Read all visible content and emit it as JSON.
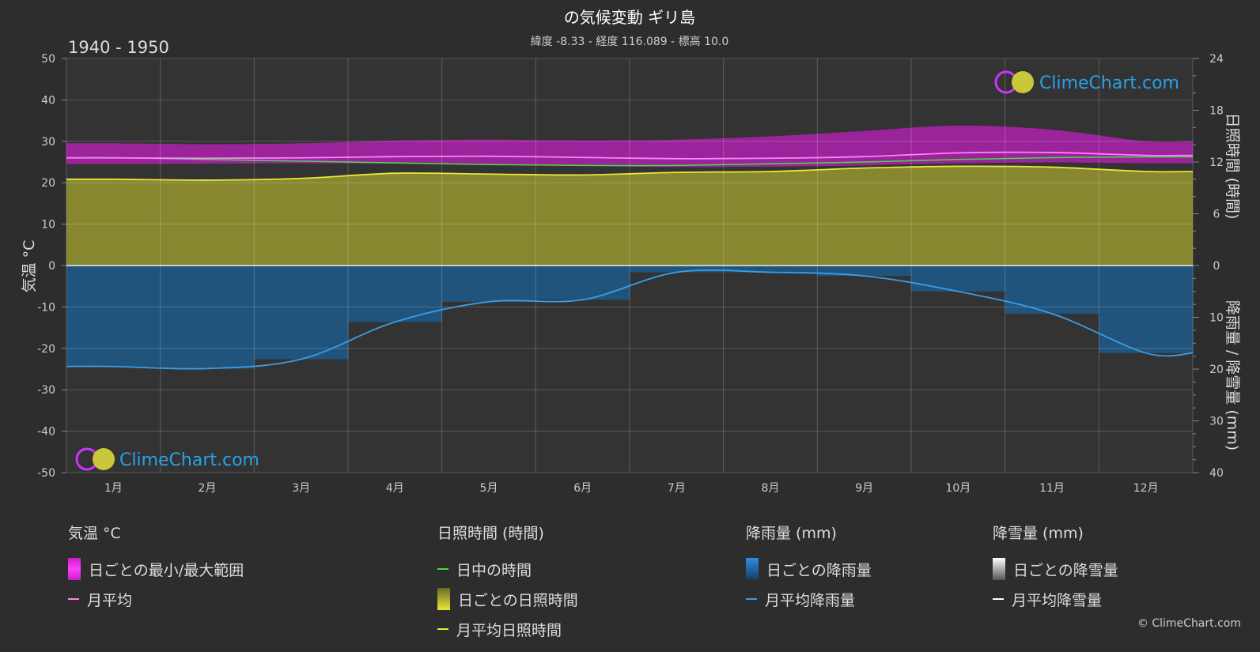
{
  "title": "の気候変動 ギリ島",
  "subtitle": "緯度 -8.33 - 経度 116.089 - 標高 10.0",
  "period": "1940 - 1950",
  "logo_text": "ClimeChart.com",
  "copyright": "© ClimeChart.com",
  "colors": {
    "background": "#2d2d2d",
    "temp_range": "#c81ec8",
    "temp_mean": "#ff80ff",
    "daylight": "#44dd44",
    "sunshine_fill": "#8c8c30",
    "sunshine_mean": "#e8e83a",
    "rain_fill": "#1f5a8a",
    "rain_mean": "#3a9de8",
    "snow_mean": "#ffffff",
    "logo_text": "#2aa0e8"
  },
  "chart_data": {
    "type": "area",
    "months": [
      "1月",
      "2月",
      "3月",
      "4月",
      "5月",
      "6月",
      "7月",
      "8月",
      "9月",
      "10月",
      "11月",
      "12月"
    ],
    "left_axis": {
      "label": "気温 °C",
      "range": [
        -50,
        50
      ],
      "ticks": [
        "50",
        "40",
        "30",
        "20",
        "10",
        "0",
        "-10",
        "-20",
        "-30",
        "-40",
        "-50"
      ]
    },
    "right_axis_top": {
      "label": "日照時間 (時間)",
      "range": [
        0,
        24
      ],
      "ticks": [
        "24",
        "18",
        "12",
        "6",
        "0"
      ]
    },
    "right_axis_bottom": {
      "label": "降雨量 / 降雪量 (mm)",
      "range": [
        0,
        40
      ],
      "ticks": [
        "10",
        "20",
        "30",
        "40"
      ]
    },
    "series": [
      {
        "name": "日ごとの最小/最大範囲",
        "kind": "band",
        "unit": "°C",
        "min": [
          24.5,
          24.6,
          24.7,
          24.6,
          24.4,
          24.1,
          23.8,
          23.9,
          24.2,
          24.7,
          24.9,
          24.7
        ],
        "max": [
          29.5,
          29.3,
          29.5,
          30.2,
          30.4,
          30.2,
          30.4,
          31.2,
          32.5,
          33.8,
          32.8,
          30.0
        ]
      },
      {
        "name": "月平均",
        "kind": "line",
        "unit": "°C",
        "values": [
          26.0,
          25.9,
          26.0,
          26.3,
          26.4,
          26.1,
          25.8,
          25.9,
          26.3,
          27.2,
          27.3,
          26.6
        ]
      },
      {
        "name": "日中の時間",
        "kind": "line",
        "unit": "h",
        "values": [
          12.5,
          12.3,
          12.1,
          11.9,
          11.7,
          11.6,
          11.6,
          11.8,
          12.0,
          12.3,
          12.5,
          12.6
        ]
      },
      {
        "name": "月平均日照時間",
        "kind": "line",
        "unit": "h",
        "values": [
          10.0,
          9.9,
          10.1,
          10.7,
          10.6,
          10.5,
          10.8,
          10.9,
          11.3,
          11.5,
          11.4,
          10.9
        ]
      },
      {
        "name": "月平均降雨量",
        "kind": "line",
        "unit": "mm",
        "values": [
          19.5,
          19.9,
          18.1,
          10.9,
          7.0,
          6.6,
          1.3,
          1.3,
          2.0,
          5.0,
          9.3,
          16.9
        ]
      },
      {
        "name": "月平均降雪量",
        "kind": "line",
        "unit": "mm",
        "values": [
          0,
          0,
          0,
          0,
          0,
          0,
          0,
          0,
          0,
          0,
          0,
          0
        ]
      }
    ]
  },
  "legend": {
    "temp": {
      "title": "気温 °C",
      "items": [
        "日ごとの最小/最大範囲",
        "月平均"
      ]
    },
    "sun": {
      "title": "日照時間 (時間)",
      "items": [
        "日中の時間",
        "日ごとの日照時間",
        "月平均日照時間"
      ]
    },
    "rain": {
      "title": "降雨量 (mm)",
      "items": [
        "日ごとの降雨量",
        "月平均降雨量"
      ]
    },
    "snow": {
      "title": "降雪量 (mm)",
      "items": [
        "日ごとの降雪量",
        "月平均降雪量"
      ]
    }
  }
}
